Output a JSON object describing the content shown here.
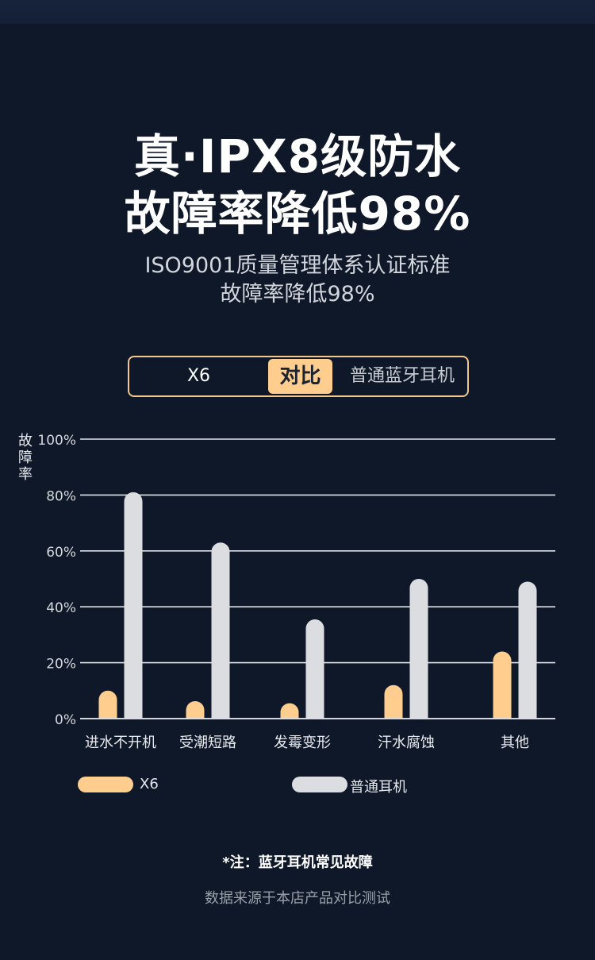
{
  "headline": {
    "line1": "真·IPX8级防水",
    "line2": "故障率降低98%"
  },
  "subtitle": {
    "line1": "ISO9001质量管理体系认证标准",
    "line2": "故障率降低98%"
  },
  "compare_bar": {
    "left": "X6",
    "middle": "对比",
    "right": "普通蓝牙耳机"
  },
  "colors": {
    "background": "#0f1828",
    "x6": "#ffcd8e",
    "ordinary": "#dcdde0",
    "grid": "#dfe2e7"
  },
  "chart_data": {
    "type": "bar",
    "ylabel": "故障率",
    "ylim": [
      0,
      100
    ],
    "yticks": [
      0,
      20,
      40,
      60,
      80,
      100
    ],
    "ytick_labels": [
      "0%",
      "20%",
      "40%",
      "60%",
      "80%",
      "100%"
    ],
    "categories": [
      "进水不开机",
      "受潮短路",
      "发霉变形",
      "汗水腐蚀",
      "其他"
    ],
    "series": [
      {
        "name": "X6",
        "color": "#ffcd8e",
        "values": [
          10,
          6,
          4.5,
          12,
          24
        ]
      },
      {
        "name": "普通耳机",
        "color": "#dcdde0",
        "values": [
          81,
          63,
          35.5,
          50,
          49
        ]
      }
    ],
    "legend": "bottom",
    "grid": true
  },
  "legend": {
    "x6": "X6",
    "ordinary": "普通耳机"
  },
  "footer": {
    "note": "*注：蓝牙耳机常见故障",
    "source": "数据来源于本店产品对比测试"
  }
}
